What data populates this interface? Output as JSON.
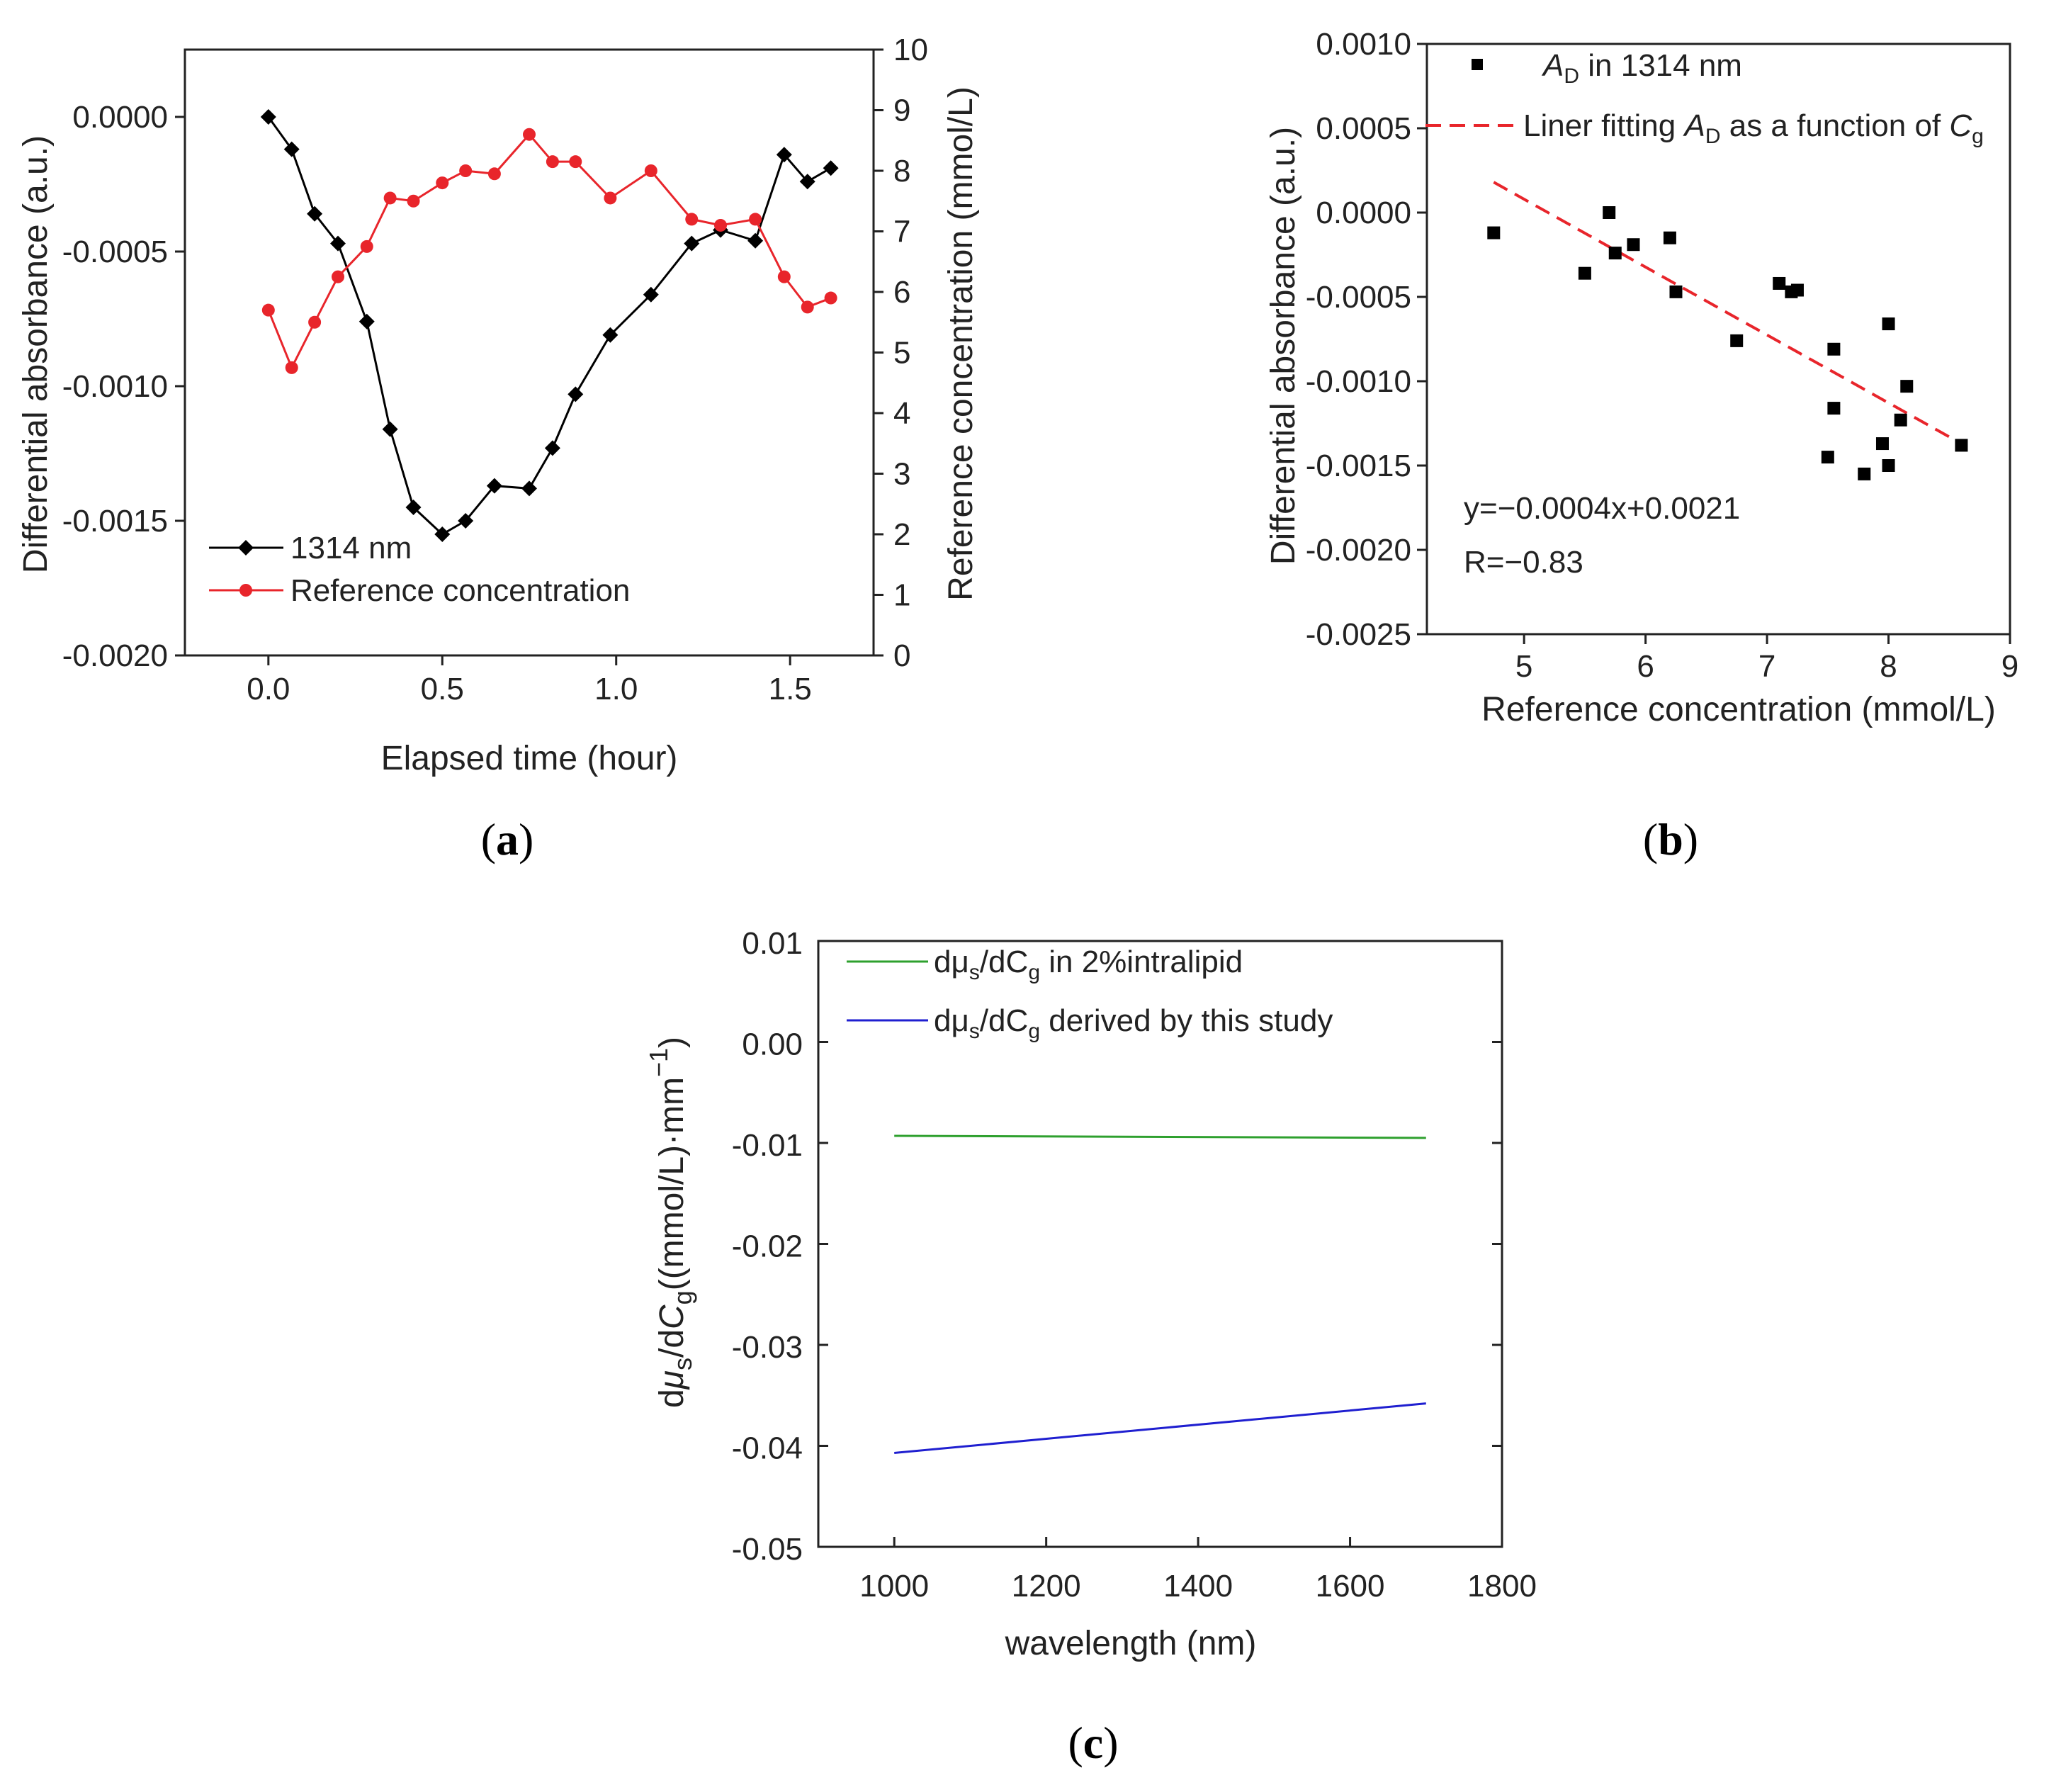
{
  "chart_data": [
    {
      "id": "a",
      "type": "line",
      "panel_label": {
        "open": "(",
        "letter": "a",
        "close": ")"
      },
      "xlabel": "Elapsed time (hour)",
      "ylabel": "Differential absorbance (a.u.)",
      "y2label": "Reference concentration (mmol/L)",
      "xlim": [
        -0.24,
        1.74
      ],
      "ylim": [
        -0.002,
        0.00025
      ],
      "y2lim": [
        0,
        10
      ],
      "xticks": [
        "0.0",
        "0.5",
        "1.0",
        "1.5"
      ],
      "xtick_values": [
        0,
        0.5,
        1.0,
        1.5
      ],
      "yticks": [
        "-0.0020",
        "-0.0015",
        "-0.0010",
        "-0.0005",
        "0.0000"
      ],
      "ytick_values": [
        -0.002,
        -0.0015,
        -0.001,
        -0.0005,
        0
      ],
      "y2ticks": [
        "0",
        "1",
        "2",
        "3",
        "4",
        "5",
        "6",
        "7",
        "8",
        "9",
        "10"
      ],
      "y2tick_values": [
        0,
        1,
        2,
        3,
        4,
        5,
        6,
        7,
        8,
        9,
        10
      ],
      "legend_position": "bottom-left",
      "series": [
        {
          "name": "1314 nm",
          "axis": "left",
          "color": "#000000",
          "marker": "diamond",
          "x": [
            0.0,
            0.067,
            0.133,
            0.2,
            0.283,
            0.35,
            0.417,
            0.5,
            0.567,
            0.65,
            0.75,
            0.817,
            0.883,
            0.983,
            1.1,
            1.217,
            1.3,
            1.4,
            1.483,
            1.55,
            1.617
          ],
          "y": [
            0.0,
            -0.00012,
            -0.00036,
            -0.00047,
            -0.00076,
            -0.00116,
            -0.00145,
            -0.00155,
            -0.0015,
            -0.00137,
            -0.00138,
            -0.00123,
            -0.00103,
            -0.00081,
            -0.00066,
            -0.00047,
            -0.00042,
            -0.00046,
            -0.00014,
            -0.00024,
            -0.00019
          ]
        },
        {
          "name": "Reference concentration",
          "axis": "right",
          "color": "#e8252b",
          "marker": "circle",
          "x": [
            0.0,
            0.067,
            0.133,
            0.2,
            0.283,
            0.35,
            0.417,
            0.5,
            0.567,
            0.65,
            0.75,
            0.817,
            0.883,
            0.983,
            1.1,
            1.217,
            1.3,
            1.4,
            1.483,
            1.55,
            1.617
          ],
          "y": [
            5.7,
            4.75,
            5.5,
            6.25,
            6.75,
            7.55,
            7.5,
            7.8,
            8.0,
            7.95,
            8.6,
            8.15,
            8.15,
            7.55,
            8.0,
            7.2,
            7.1,
            7.2,
            6.25,
            5.75,
            5.9
          ]
        }
      ]
    },
    {
      "id": "b",
      "type": "scatter",
      "panel_label": {
        "open": "(",
        "letter": "b",
        "close": ")"
      },
      "xlabel": "Reference concentration (mmol/L)",
      "ylabel": "Differential absorbance (a.u.)",
      "xlim": [
        4.2,
        9.0
      ],
      "ylim": [
        -0.0025,
        0.001
      ],
      "xticks": [
        "5",
        "6",
        "7",
        "8",
        "9"
      ],
      "xtick_values": [
        5,
        6,
        7,
        8,
        9
      ],
      "yticks": [
        "0.0010",
        "0.0005",
        "0.0000",
        "-0.0005",
        "-0.0010",
        "-0.0015",
        "-0.0020",
        "-0.0025"
      ],
      "ytick_values": [
        0.001,
        0.0005,
        0,
        -0.0005,
        -0.001,
        -0.0015,
        -0.002,
        -0.0025
      ],
      "legend_position": "top-left",
      "series": [
        {
          "name_main": "A",
          "name_sub": "D",
          "name_rest": " in 1314 nm",
          "color": "#000000",
          "marker": "square",
          "x": [
            4.75,
            5.5,
            5.7,
            5.75,
            5.9,
            6.2,
            6.25,
            6.75,
            7.1,
            7.2,
            7.25,
            7.5,
            7.55,
            7.55,
            7.8,
            7.95,
            8.0,
            8.0,
            8.1,
            8.15,
            8.6
          ],
          "y": [
            -0.00012,
            -0.00036,
            0.0,
            -0.00024,
            -0.00019,
            -0.00015,
            -0.00047,
            -0.00076,
            -0.00042,
            -0.00047,
            -0.00046,
            -0.00145,
            -0.00081,
            -0.00116,
            -0.00155,
            -0.00137,
            -0.00066,
            -0.0015,
            -0.00123,
            -0.00103,
            -0.00138
          ]
        }
      ],
      "fit": {
        "name_pre": "Liner fitting ",
        "name_main": "A",
        "name_sub": "D",
        "name_mid": " as a function of ",
        "name_main2": "C",
        "name_sub2": "g",
        "color": "#e8252b",
        "style": "dashed",
        "x": [
          4.75,
          8.6
        ],
        "y": [
          0.00018,
          -0.00137
        ]
      },
      "annotations": [
        "y=−0.0004x+0.0021",
        "R=−0.83"
      ]
    },
    {
      "id": "c",
      "type": "line",
      "panel_label": {
        "open": "(",
        "letter": "c",
        "close": ")"
      },
      "xlabel": "wavelength (nm)",
      "ylabel_parts": {
        "d1": "d",
        "mu": "μ",
        "mu_sub": "s",
        "slash": "/d",
        "c": "C",
        "c_sub": "g",
        "rest": "((mmol/L)·mm",
        "exp": "−1",
        "close": ")"
      },
      "xlim": [
        900,
        1800
      ],
      "ylim": [
        -0.05,
        0.01
      ],
      "xticks": [
        "1000",
        "1200",
        "1400",
        "1600",
        "1800"
      ],
      "xtick_values": [
        1000,
        1200,
        1400,
        1600,
        1800
      ],
      "yticks": [
        "0.01",
        "0.00",
        "-0.01",
        "-0.02",
        "-0.03",
        "-0.04",
        "-0.05"
      ],
      "ytick_values": [
        0.01,
        0.0,
        -0.01,
        -0.02,
        -0.03,
        -0.04,
        -0.05
      ],
      "legend_position": "top-left",
      "series": [
        {
          "label_pre": "dμ",
          "label_sub1": "s",
          "label_mid": "/dC",
          "label_sub2": "g",
          "label_rest": " in 2%intralipid",
          "color": "#2ea02e",
          "x": [
            1000,
            1700
          ],
          "y": [
            -0.0093,
            -0.0095
          ]
        },
        {
          "label_pre": "dμ",
          "label_sub1": "s",
          "label_mid": "/dC",
          "label_sub2": "g",
          "label_rest": " derived by this study",
          "color": "#1f1fd0",
          "x": [
            1000,
            1700
          ],
          "y": [
            -0.0407,
            -0.0358
          ]
        }
      ]
    }
  ]
}
